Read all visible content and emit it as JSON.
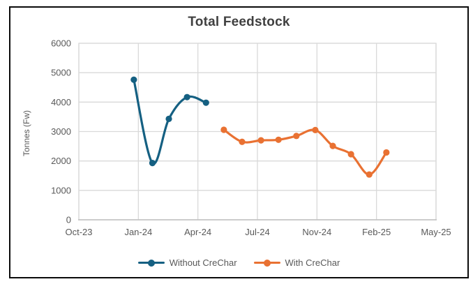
{
  "chart_data": {
    "type": "line",
    "title": "Total Feedstock",
    "xlabel": "",
    "ylabel": "Tonnes (Fw)",
    "ylim": [
      0,
      6000
    ],
    "yticks": [
      0,
      1000,
      2000,
      3000,
      4000,
      5000,
      6000
    ],
    "x_axis_labels": [
      "Oct-23",
      "Jan-24",
      "Apr-24",
      "Jul-24",
      "Nov-24",
      "Feb-25",
      "May-25"
    ],
    "grid": true,
    "line_style": "smooth",
    "legend_position": "bottom-center",
    "series": [
      {
        "name": "Without CreChar",
        "color": "#156082",
        "points": [
          {
            "month": "Dec-23",
            "value": 4760,
            "x_frac": 0.154
          },
          {
            "month": "Jan-24",
            "value": 1930,
            "x_frac": 0.206
          },
          {
            "month": "Feb-24",
            "value": 3430,
            "x_frac": 0.252
          },
          {
            "month": "Mar-24",
            "value": 4170,
            "x_frac": 0.303
          },
          {
            "month": "Apr-24",
            "value": 3980,
            "x_frac": 0.356
          }
        ]
      },
      {
        "name": "With CreChar",
        "color": "#E97132",
        "points": [
          {
            "month": "May-24",
            "value": 3060,
            "x_frac": 0.406
          },
          {
            "month": "Jun-24",
            "value": 2650,
            "x_frac": 0.457
          },
          {
            "month": "Jul-24",
            "value": 2700,
            "x_frac": 0.51
          },
          {
            "month": "Aug-24",
            "value": 2720,
            "x_frac": 0.559
          },
          {
            "month": "Sep-24",
            "value": 2850,
            "x_frac": 0.609
          },
          {
            "month": "Nov-24",
            "value": 3050,
            "x_frac": 0.662
          },
          {
            "month": "Dec-24",
            "value": 2510,
            "x_frac": 0.711
          },
          {
            "month": "Jan-25",
            "value": 2230,
            "x_frac": 0.762
          },
          {
            "month": "Feb-25",
            "value": 1540,
            "x_frac": 0.813
          },
          {
            "month": "Mar-25",
            "value": 2290,
            "x_frac": 0.861
          }
        ]
      }
    ]
  },
  "colors": {
    "series_blue": "#156082",
    "series_orange": "#E97132",
    "gridline": "#D9D9D9",
    "axis_line": "#BFBFBF",
    "tick_text": "#595959",
    "title_text": "#404040",
    "frame_border": "#0b0b0b"
  }
}
